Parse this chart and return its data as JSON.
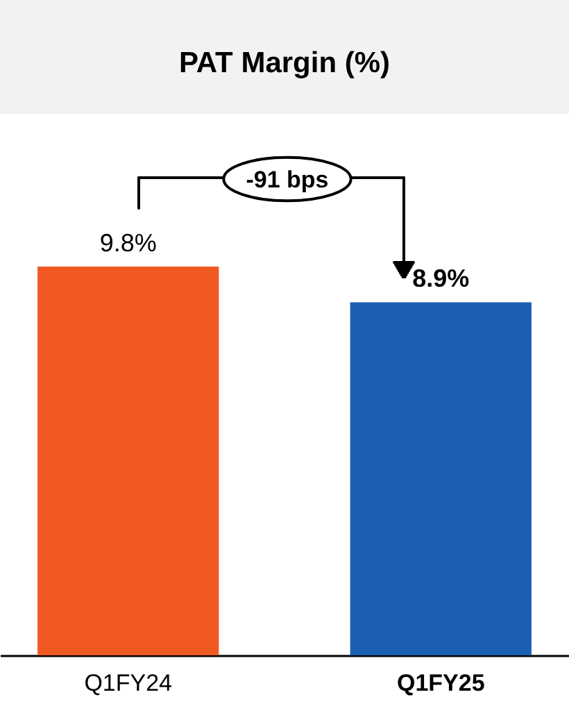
{
  "chart_data": {
    "type": "bar",
    "title": "PAT Margin (%)",
    "categories": [
      "Q1FY24",
      "Q1FY25"
    ],
    "values": [
      9.8,
      8.9
    ],
    "colors": [
      "#f05a22",
      "#1a5fb4"
    ],
    "value_labels": [
      "9.8%",
      "8.9%"
    ],
    "annotations": [
      "-91 bps"
    ]
  }
}
